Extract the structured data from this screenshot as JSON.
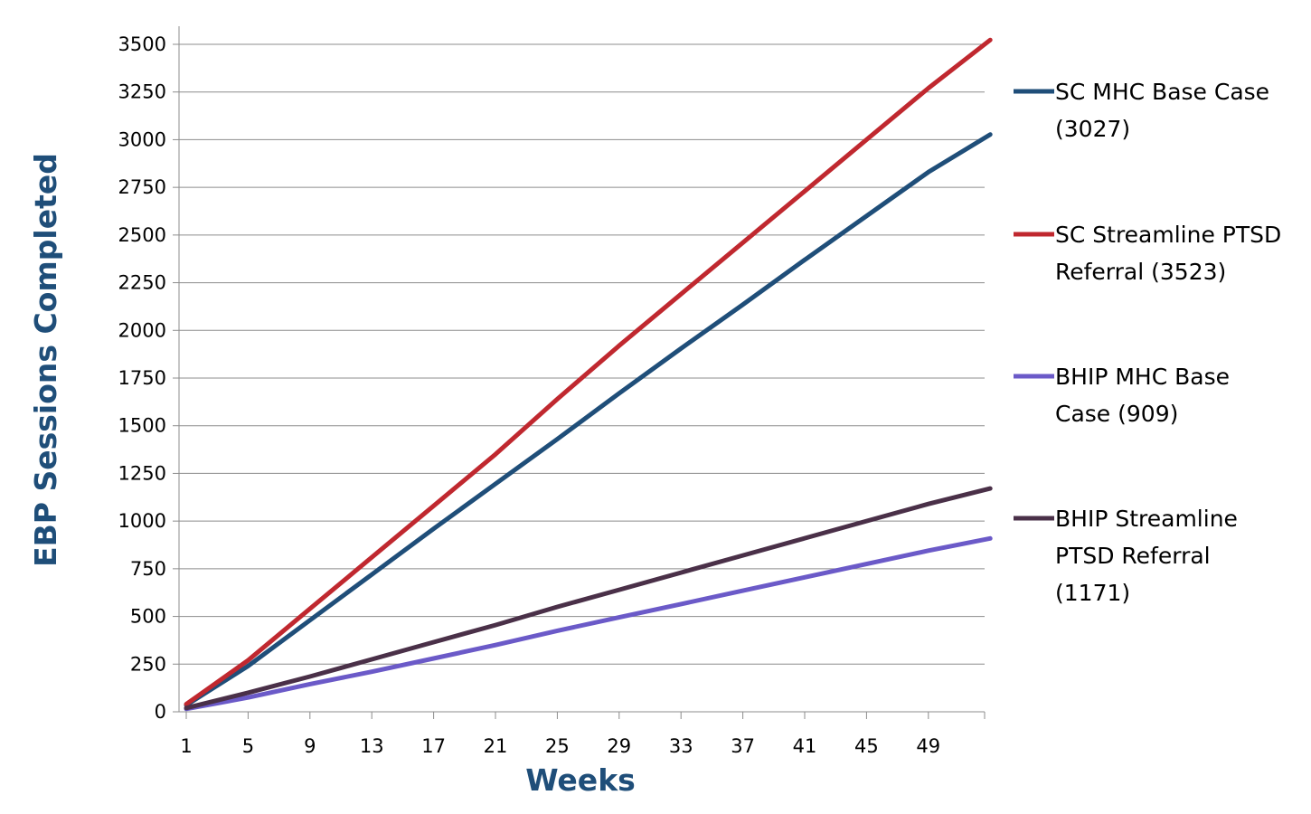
{
  "chart_data": {
    "type": "line",
    "title": "",
    "xlabel": "Weeks",
    "ylabel": "EBP Sessions Completed",
    "xlim": [
      1,
      53
    ],
    "ylim": [
      0,
      3600
    ],
    "y_ticks": [
      0,
      250,
      500,
      750,
      1000,
      1250,
      1500,
      1750,
      2000,
      2250,
      2500,
      2750,
      3000,
      3250,
      3500
    ],
    "x_ticks": [
      1,
      5,
      9,
      13,
      17,
      21,
      25,
      29,
      33,
      37,
      41,
      45,
      49
    ],
    "grid": "horizontal",
    "legend_position": "right",
    "series": [
      {
        "name": "SC MHC Base Case (3027)",
        "legend_lines": [
          "SC MHC Base Case",
          "(3027)"
        ],
        "color": "#1f4e79",
        "x": [
          1,
          5,
          9,
          13,
          17,
          21,
          25,
          29,
          33,
          37,
          41,
          45,
          49,
          53
        ],
        "values": [
          35,
          240,
          480,
          720,
          960,
          1195,
          1430,
          1670,
          1905,
          2135,
          2370,
          2600,
          2830,
          3027
        ]
      },
      {
        "name": "SC Streamline PTSD Referral (3523)",
        "legend_lines": [
          "SC Streamline PTSD",
          "Referral (3523)"
        ],
        "color": "#c0282f",
        "x": [
          1,
          5,
          9,
          13,
          17,
          21,
          25,
          29,
          33,
          37,
          41,
          45,
          49,
          53
        ],
        "values": [
          40,
          270,
          540,
          810,
          1080,
          1350,
          1640,
          1920,
          2190,
          2460,
          2730,
          3000,
          3270,
          3523
        ]
      },
      {
        "name": "BHIP MHC Base Case (909)",
        "legend_lines": [
          "BHIP MHC Base",
          "Case (909)"
        ],
        "color": "#6b5ac8",
        "x": [
          1,
          5,
          9,
          13,
          17,
          21,
          25,
          29,
          33,
          37,
          41,
          45,
          49,
          53
        ],
        "values": [
          15,
          75,
          145,
          210,
          280,
          350,
          425,
          495,
          565,
          635,
          705,
          775,
          845,
          909
        ]
      },
      {
        "name": "BHIP Streamline PTSD Referral (1171)",
        "legend_lines": [
          "BHIP Streamline",
          "PTSD Referral",
          "(1171)"
        ],
        "color": "#4a3048",
        "x": [
          1,
          5,
          9,
          13,
          17,
          21,
          25,
          29,
          33,
          37,
          41,
          45,
          49,
          53
        ],
        "values": [
          20,
          100,
          185,
          275,
          365,
          455,
          550,
          640,
          730,
          820,
          910,
          1000,
          1090,
          1171
        ]
      }
    ]
  }
}
